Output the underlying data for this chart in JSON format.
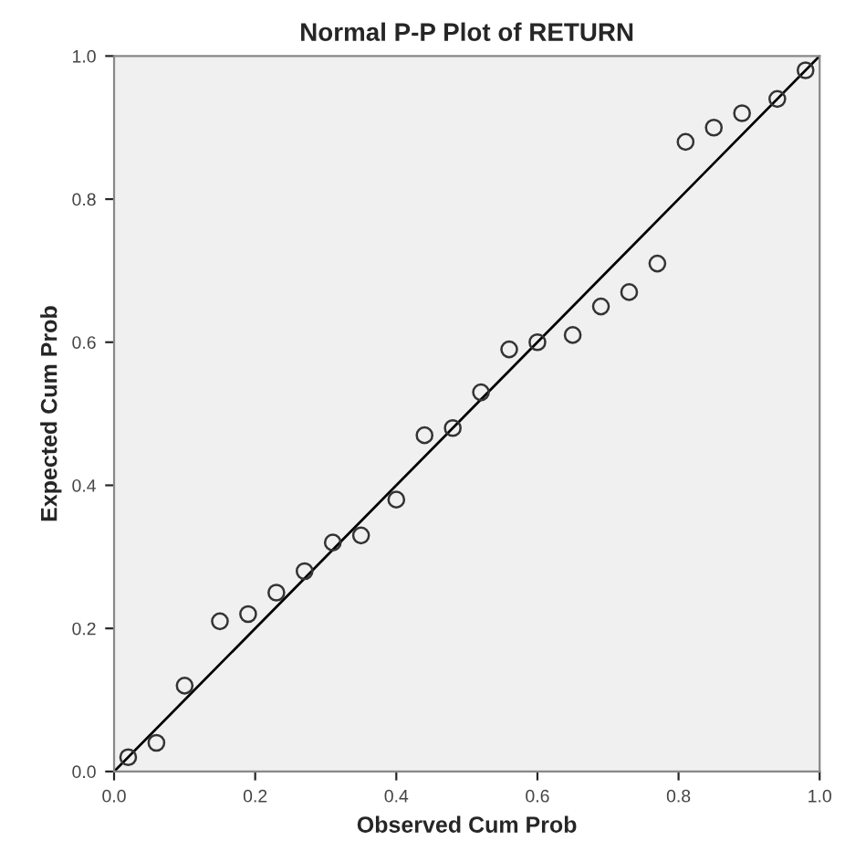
{
  "chart_data": {
    "type": "scatter",
    "title": "Normal P-P Plot of RETURN",
    "xlabel": "Observed Cum Prob",
    "ylabel": "Expected Cum Prob",
    "series": [
      {
        "color": "#333333",
        "marker": "circle",
        "x": [
          0.02,
          0.06,
          0.1,
          0.15,
          0.19,
          0.23,
          0.27,
          0.31,
          0.35,
          0.4,
          0.44,
          0.48,
          0.52,
          0.56,
          0.6,
          0.65,
          0.69,
          0.73,
          0.77,
          0.81,
          0.85,
          0.89,
          0.94,
          0.98
        ],
        "values": [
          0.02,
          0.04,
          0.12,
          0.21,
          0.22,
          0.25,
          0.28,
          0.32,
          0.33,
          0.38,
          0.47,
          0.48,
          0.53,
          0.59,
          0.6,
          0.61,
          0.65,
          0.67,
          0.71,
          0.88,
          0.9,
          0.92,
          0.94,
          0.98
        ]
      },
      {
        "type": "line",
        "color": "#000000",
        "marker": "none",
        "line_style": "solid",
        "x": [
          0.0,
          1.0
        ],
        "values": [
          0.0,
          1.0
        ]
      }
    ],
    "xlim": [
      0.0,
      1.0
    ],
    "ylim": [
      0.0,
      1.0
    ],
    "xticks": [
      {
        "value": 0.0,
        "label": "0.0"
      },
      {
        "value": 0.2,
        "label": "0.2"
      },
      {
        "value": 0.4,
        "label": "0.4"
      },
      {
        "value": 0.6,
        "label": "0.6"
      },
      {
        "value": 0.8,
        "label": "0.8"
      },
      {
        "value": 1.0,
        "label": "1.0"
      }
    ],
    "yticks": [
      {
        "value": 0.0,
        "label": "0.0"
      },
      {
        "value": 0.2,
        "label": "0.2"
      },
      {
        "value": 0.4,
        "label": "0.4"
      },
      {
        "value": 0.6,
        "label": "0.6"
      },
      {
        "value": 0.8,
        "label": "0.8"
      },
      {
        "value": 1.0,
        "label": "1.0"
      }
    ],
    "grid": false
  }
}
